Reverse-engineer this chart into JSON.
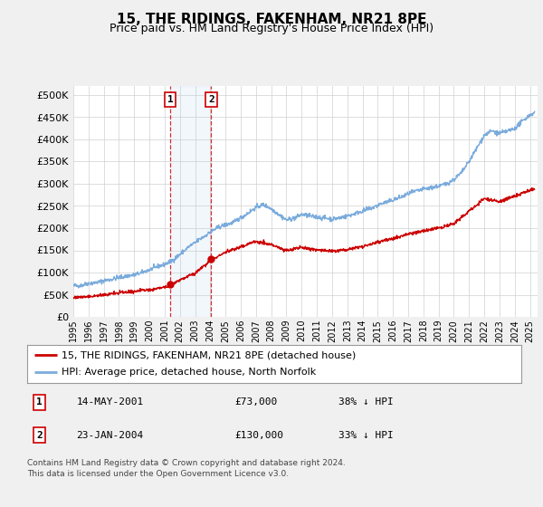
{
  "title": "15, THE RIDINGS, FAKENHAM, NR21 8PE",
  "subtitle": "Price paid vs. HM Land Registry's House Price Index (HPI)",
  "ylabel_ticks": [
    "£0",
    "£50K",
    "£100K",
    "£150K",
    "£200K",
    "£250K",
    "£300K",
    "£350K",
    "£400K",
    "£450K",
    "£500K"
  ],
  "ytick_values": [
    0,
    50000,
    100000,
    150000,
    200000,
    250000,
    300000,
    350000,
    400000,
    450000,
    500000
  ],
  "ylim": [
    0,
    520000
  ],
  "hpi_color": "#7aabdc",
  "price_color": "#cc0000",
  "bg_color": "#f0f0f0",
  "plot_bg": "#ffffff",
  "transaction1_x": 2001.37,
  "transaction1_price": 73000,
  "transaction2_x": 2004.06,
  "transaction2_price": 130000,
  "legend_line1": "15, THE RIDINGS, FAKENHAM, NR21 8PE (detached house)",
  "legend_line2": "HPI: Average price, detached house, North Norfolk",
  "footnote1": "Contains HM Land Registry data © Crown copyright and database right 2024.",
  "footnote2": "This data is licensed under the Open Government Licence v3.0.",
  "xmin": 1995.0,
  "xmax": 2025.5
}
